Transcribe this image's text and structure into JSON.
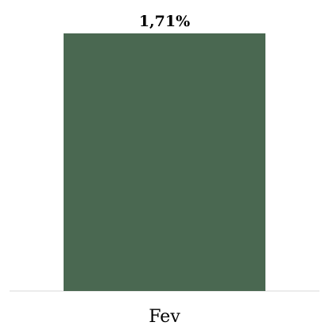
{
  "chart_data": {
    "type": "bar",
    "categories": [
      "Fev"
    ],
    "values": [
      1.71
    ],
    "data_labels": [
      "1,71%"
    ],
    "title": "",
    "xlabel": "",
    "ylabel": "",
    "ylim": [
      0,
      1.71
    ],
    "grid": false,
    "colors": {
      "bar": "#4a6851",
      "axis": "#d9d9d9"
    }
  }
}
